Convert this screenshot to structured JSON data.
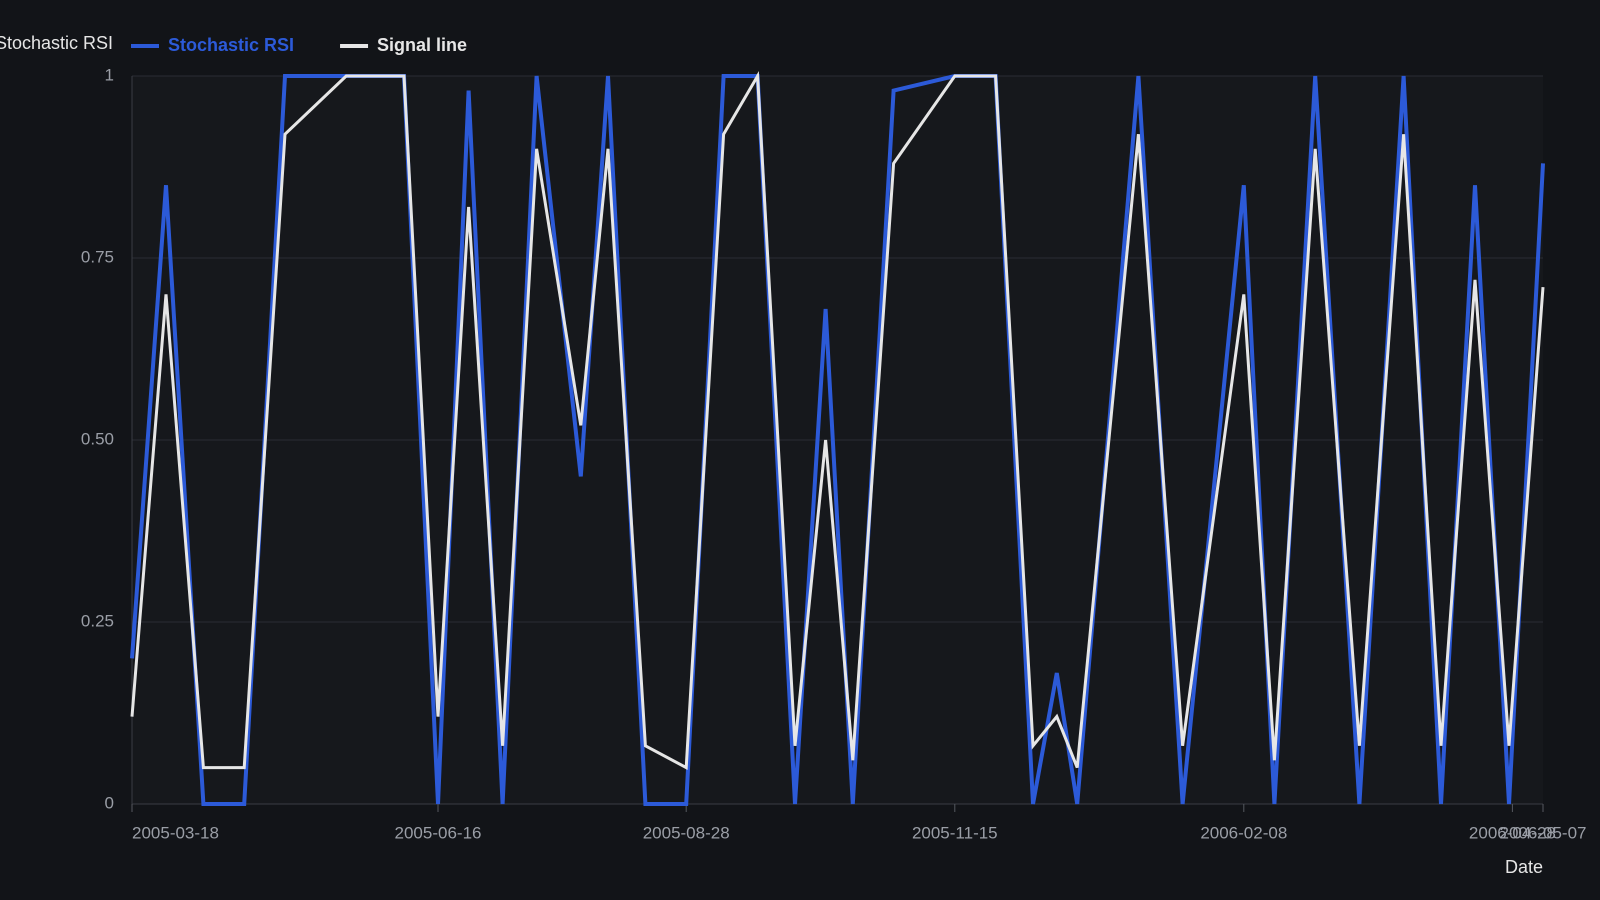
{
  "chart_data": {
    "type": "line",
    "y_label": "Stochastic RSI",
    "x_label": "Date",
    "x": [
      "2005-03-18",
      "2005-03-28",
      "2005-04-08",
      "2005-04-20",
      "2005-05-02",
      "2005-05-20",
      "2005-06-06",
      "2005-06-16",
      "2005-06-25",
      "2005-07-05",
      "2005-07-15",
      "2005-07-28",
      "2005-08-05",
      "2005-08-16",
      "2005-08-28",
      "2005-09-08",
      "2005-09-18",
      "2005-09-29",
      "2005-10-08",
      "2005-10-16",
      "2005-10-28",
      "2005-11-15",
      "2005-11-27",
      "2005-12-08",
      "2005-12-15",
      "2005-12-21",
      "2006-01-08",
      "2006-01-21",
      "2006-02-08",
      "2006-02-17",
      "2006-03-01",
      "2006-03-14",
      "2006-03-27",
      "2006-04-07",
      "2006-04-17",
      "2006-04-27",
      "2006-05-07"
    ],
    "series": [
      {
        "name": "Stochastic RSI",
        "color": "#2c5ad8",
        "values": [
          0.2,
          0.85,
          0,
          0,
          1,
          1,
          1,
          0,
          0.98,
          0,
          1,
          0.45,
          1,
          0,
          0,
          1,
          1,
          0,
          0.68,
          0,
          0.98,
          1,
          1,
          0,
          0.18,
          0,
          1,
          0,
          0.85,
          0,
          1,
          0,
          1,
          0,
          0.85,
          0,
          0.88
        ]
      },
      {
        "name": "Signal line",
        "color": "#e6e6e6",
        "values": [
          0.12,
          0.7,
          0.05,
          0.05,
          0.92,
          1,
          1,
          0.12,
          0.82,
          0.08,
          0.9,
          0.52,
          0.9,
          0.08,
          0.05,
          0.92,
          1,
          0.08,
          0.5,
          0.06,
          0.88,
          1,
          1,
          0.08,
          0.12,
          0.05,
          0.92,
          0.08,
          0.7,
          0.06,
          0.9,
          0.08,
          0.92,
          0.08,
          0.72,
          0.08,
          0.71
        ]
      }
    ],
    "xlim": [
      "2005-03-18",
      "2006-05-07"
    ],
    "xticks": [
      "2005-03-18",
      "2005-06-16",
      "2005-08-28",
      "2005-11-15",
      "2006-02-08",
      "2006-04-28",
      "2006-05-07"
    ],
    "ylim": [
      0,
      1
    ],
    "yticks": [
      0,
      0.25,
      {
        "value": 0.5,
        "label": "0.50"
      },
      0.75,
      1
    ],
    "grid": true
  }
}
